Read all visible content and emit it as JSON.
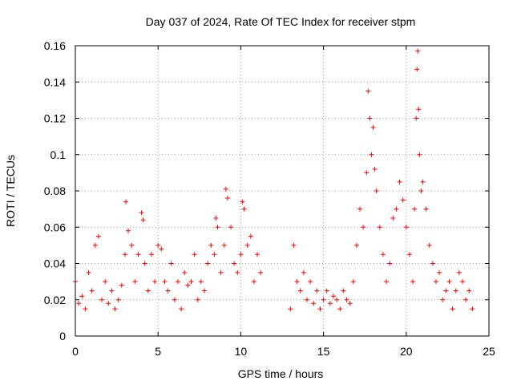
{
  "chart_data": {
    "type": "scatter",
    "title": "Day 037 of 2024, Rate Of TEC Index for receiver stpm",
    "xlabel": "GPS time / hours",
    "ylabel": "ROTI / TECUs",
    "xlim": [
      0,
      25
    ],
    "ylim": [
      0,
      0.16
    ],
    "xticks": [
      0,
      5,
      10,
      15,
      20,
      25
    ],
    "yticks": [
      0,
      0.02,
      0.04,
      0.06,
      0.08,
      0.1,
      0.12,
      0.14,
      0.16
    ],
    "xtick_labels": [
      "0",
      "5",
      "10",
      "15",
      "20",
      "25"
    ],
    "ytick_labels": [
      "0",
      "0.02",
      "0.04",
      "0.06",
      "0.08",
      "0.1",
      "0.12",
      "0.14",
      "0.16"
    ],
    "grid": true,
    "marker": "+",
    "marker_color": "#ff0000",
    "series": [
      {
        "name": "ROTI",
        "x": [
          0.0,
          0.2,
          0.4,
          0.6,
          0.8,
          1.0,
          1.2,
          1.4,
          1.6,
          1.8,
          2.0,
          2.2,
          2.4,
          2.6,
          2.8,
          3.0,
          3.05,
          3.2,
          3.4,
          3.6,
          3.8,
          4.0,
          4.1,
          4.2,
          4.4,
          4.6,
          4.8,
          5.0,
          5.2,
          5.4,
          5.6,
          5.8,
          6.0,
          6.2,
          6.4,
          6.6,
          6.8,
          7.0,
          7.2,
          7.4,
          7.6,
          7.8,
          8.0,
          8.2,
          8.4,
          8.5,
          8.6,
          8.8,
          9.0,
          9.1,
          9.2,
          9.4,
          9.6,
          9.8,
          10.0,
          10.1,
          10.2,
          10.4,
          10.6,
          10.8,
          11.0,
          11.2,
          13.0,
          13.2,
          13.4,
          13.6,
          13.8,
          14.0,
          14.2,
          14.4,
          14.6,
          14.8,
          15.0,
          15.2,
          15.4,
          15.6,
          15.8,
          16.0,
          16.2,
          16.4,
          16.6,
          16.8,
          17.0,
          17.2,
          17.4,
          17.6,
          17.7,
          17.8,
          17.9,
          18.0,
          18.1,
          18.2,
          18.4,
          18.6,
          18.8,
          19.0,
          19.2,
          19.4,
          19.6,
          19.8,
          20.0,
          20.2,
          20.4,
          20.5,
          20.6,
          20.65,
          20.7,
          20.75,
          20.8,
          20.9,
          21.0,
          21.2,
          21.4,
          21.6,
          21.8,
          22.0,
          22.2,
          22.4,
          22.6,
          22.8,
          23.0,
          23.2,
          23.4,
          23.6,
          23.8,
          24.0
        ],
        "y": [
          0.03,
          0.018,
          0.022,
          0.015,
          0.035,
          0.025,
          0.05,
          0.055,
          0.02,
          0.03,
          0.018,
          0.025,
          0.015,
          0.02,
          0.028,
          0.045,
          0.074,
          0.058,
          0.05,
          0.03,
          0.045,
          0.068,
          0.064,
          0.04,
          0.025,
          0.045,
          0.03,
          0.05,
          0.048,
          0.03,
          0.025,
          0.04,
          0.02,
          0.03,
          0.015,
          0.035,
          0.028,
          0.03,
          0.045,
          0.02,
          0.03,
          0.025,
          0.04,
          0.05,
          0.045,
          0.065,
          0.06,
          0.035,
          0.05,
          0.081,
          0.076,
          0.06,
          0.04,
          0.035,
          0.045,
          0.074,
          0.07,
          0.05,
          0.055,
          0.03,
          0.045,
          0.035,
          0.015,
          0.05,
          0.03,
          0.025,
          0.035,
          0.02,
          0.03,
          0.018,
          0.025,
          0.015,
          0.02,
          0.025,
          0.018,
          0.022,
          0.02,
          0.015,
          0.025,
          0.02,
          0.018,
          0.03,
          0.05,
          0.07,
          0.06,
          0.09,
          0.135,
          0.12,
          0.1,
          0.115,
          0.092,
          0.08,
          0.06,
          0.045,
          0.03,
          0.04,
          0.065,
          0.07,
          0.085,
          0.075,
          0.06,
          0.045,
          0.03,
          0.07,
          0.12,
          0.147,
          0.157,
          0.125,
          0.1,
          0.08,
          0.085,
          0.07,
          0.05,
          0.04,
          0.03,
          0.035,
          0.02,
          0.025,
          0.03,
          0.015,
          0.025,
          0.035,
          0.03,
          0.02,
          0.025,
          0.015
        ]
      }
    ]
  }
}
